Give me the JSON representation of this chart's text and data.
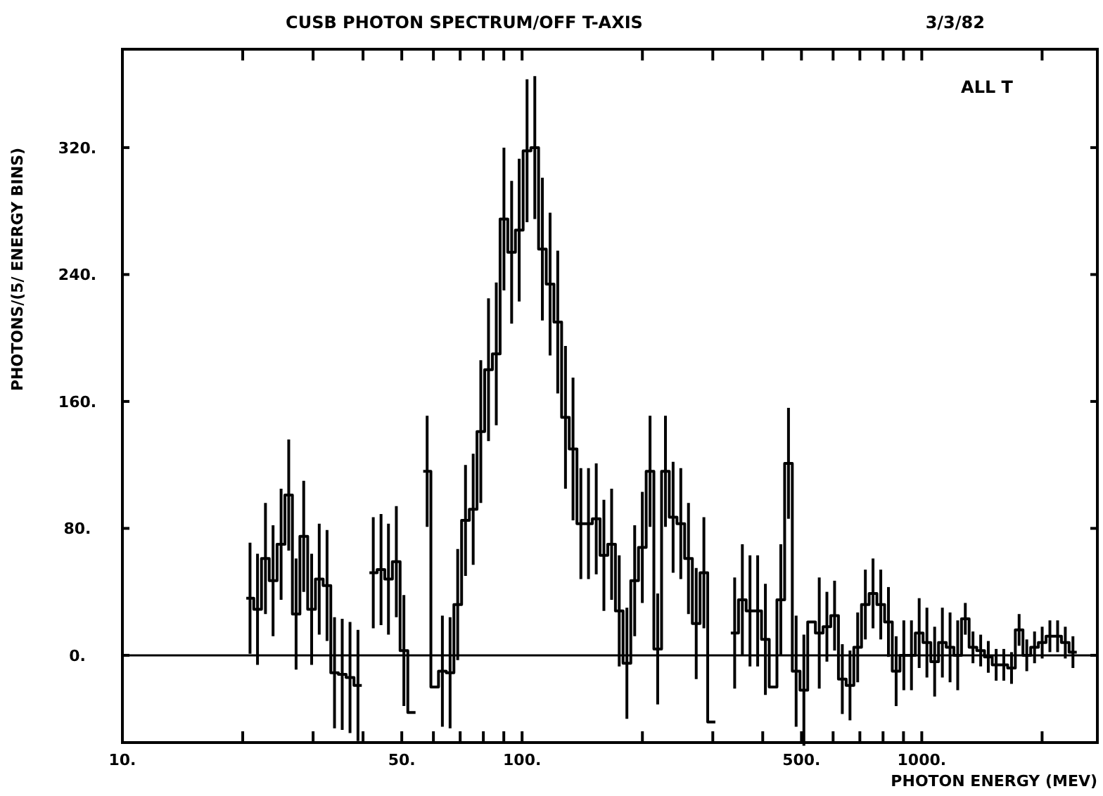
{
  "chart_data": {
    "type": "step",
    "title": "CUSB PHOTON SPECTRUM/OFF T-AXIS",
    "xlabel": "PHOTON ENERGY (MEV)",
    "ylabel": "PHOTONS/(5/ ENERGY BINS)",
    "annotations": [
      "3/3/82",
      "ALL T"
    ],
    "log": "x",
    "x": [
      20.86,
      21.78,
      22.8,
      23.82,
      24.95,
      26.07,
      27.2,
      28.42,
      29.75,
      31.08,
      32.51,
      33.94,
      35.48,
      37.11,
      38.85,
      40.59,
      42.43,
      44.37,
      46.31,
      48.46,
      50.61,
      52.96,
      55.31,
      57.87,
      60.42,
      63.18,
      66.05,
      69.01,
      72.18,
      75.45,
      78.83,
      82.41,
      86.19,
      90.07,
      94.16,
      98.35,
      102.9,
      107.6,
      112.4,
      117.5,
      122.8,
      128.4,
      134.1,
      140.3,
      146.6,
      153.3,
      160.2,
      167.5,
      175.0,
      182.9,
      191.3,
      199.9,
      209.0,
      218.4,
      228.4,
      238.7,
      249.5,
      260.8,
      272.7,
      285.0,
      297.8,
      311.3,
      325.5,
      340.3,
      355.7,
      371.7,
      388.5,
      406.2,
      424.6,
      443.9,
      464.0,
      484.9,
      507.0,
      529.9,
      554.0,
      578.9,
      605.1,
      632.7,
      661.3,
      691.2,
      722.5,
      755.1,
      789.6,
      825.3,
      862.7,
      901.7,
      942.3,
      985.2,
      1030,
      1077,
      1126,
      1177,
      1230,
      1285,
      1343,
      1404,
      1467,
      1535,
      1604,
      1677,
      1752,
      1831,
      1915,
      2001,
      2092,
      2187,
      2286,
      2389
    ],
    "values": [
      36,
      29,
      61,
      47,
      70,
      101,
      26,
      75,
      29,
      48,
      44,
      -11,
      -12,
      -14,
      -19,
      null,
      52,
      54,
      48,
      59,
      3,
      -36,
      null,
      116,
      -20,
      -10,
      -11,
      32,
      85,
      92,
      141,
      180,
      190,
      275,
      254,
      268,
      318,
      320,
      256,
      234,
      210,
      150,
      130,
      83,
      83,
      86,
      63,
      70,
      28,
      -5,
      47,
      68,
      116,
      4,
      116,
      87,
      83,
      61,
      20,
      52,
      -42,
      null,
      null,
      14,
      35,
      28,
      28,
      10,
      -20,
      35,
      121,
      -10,
      -22,
      21,
      14,
      18,
      25,
      -15,
      -19,
      5,
      32,
      39,
      32,
      21,
      -10,
      0,
      0,
      14,
      8,
      -4,
      8,
      5,
      0,
      23,
      5,
      3,
      -1,
      -6,
      -6,
      -8,
      16,
      0,
      5,
      8,
      12,
      12,
      8,
      2
    ],
    "errors": [
      35,
      35,
      35,
      35,
      35,
      35,
      35,
      35,
      35,
      35,
      35,
      35,
      35,
      35,
      35,
      null,
      35,
      35,
      35,
      35,
      35,
      null,
      null,
      35,
      null,
      35,
      35,
      35,
      35,
      35,
      45,
      45,
      45,
      45,
      45,
      45,
      45,
      45,
      45,
      45,
      45,
      45,
      45,
      35,
      35,
      35,
      35,
      35,
      35,
      35,
      35,
      35,
      35,
      35,
      35,
      35,
      35,
      35,
      35,
      35,
      null,
      null,
      null,
      35,
      35,
      35,
      35,
      35,
      null,
      35,
      35,
      35,
      35,
      null,
      35,
      22,
      22,
      22,
      22,
      22,
      22,
      22,
      22,
      22,
      22,
      22,
      22,
      22,
      22,
      22,
      22,
      22,
      22,
      10,
      10,
      10,
      10,
      10,
      10,
      10,
      10,
      10,
      10,
      10,
      10,
      10,
      10,
      10
    ],
    "color": "#000000",
    "xlim": [
      10,
      2750
    ],
    "xticks": [
      {
        "value": 10,
        "label": "10."
      },
      {
        "value": 20,
        "label": null
      },
      {
        "value": 30,
        "label": null
      },
      {
        "value": 40,
        "label": null
      },
      {
        "value": 50,
        "label": "50."
      },
      {
        "value": 60,
        "label": null
      },
      {
        "value": 70,
        "label": null
      },
      {
        "value": 80,
        "label": null
      },
      {
        "value": 90,
        "label": null
      },
      {
        "value": 100,
        "label": "100."
      },
      {
        "value": 200,
        "label": null
      },
      {
        "value": 300,
        "label": null
      },
      {
        "value": 400,
        "label": null
      },
      {
        "value": 500,
        "label": "500."
      },
      {
        "value": 600,
        "label": null
      },
      {
        "value": 700,
        "label": null
      },
      {
        "value": 800,
        "label": null
      },
      {
        "value": 900,
        "label": null
      },
      {
        "value": 1000,
        "label": "1000."
      },
      {
        "value": 2000,
        "label": null
      }
    ],
    "ylim": [
      -55,
      382
    ],
    "yticks": [
      {
        "value": 0,
        "label": "0."
      },
      {
        "value": 80,
        "label": "80."
      },
      {
        "value": 160,
        "label": "160."
      },
      {
        "value": 240,
        "label": "240."
      },
      {
        "value": 320,
        "label": "320."
      }
    ],
    "ref_lines": [
      {
        "axis": "y",
        "value": 0,
        "color": "#000000"
      }
    ]
  }
}
